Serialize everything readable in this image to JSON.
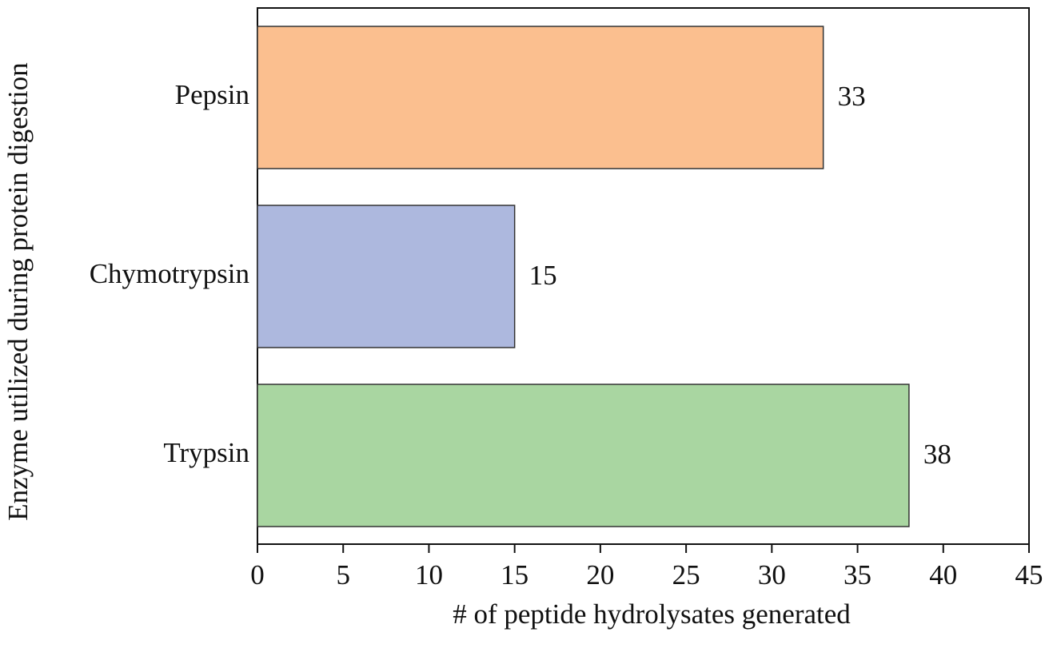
{
  "chart_data": {
    "type": "bar",
    "orientation": "horizontal",
    "categories": [
      "Pepsin",
      "Chymotrypsin",
      "Trypsin"
    ],
    "values": [
      33,
      15,
      38
    ],
    "colors": [
      "#fbbf8f",
      "#adb8de",
      "#a9d6a1"
    ],
    "xlabel": "# of peptide hydrolysates generated",
    "ylabel": "Enzyme utilized during protein digestion",
    "xlim": [
      0,
      45
    ],
    "xticks": [
      0,
      5,
      10,
      15,
      20,
      25,
      30,
      35,
      40,
      45
    ]
  }
}
